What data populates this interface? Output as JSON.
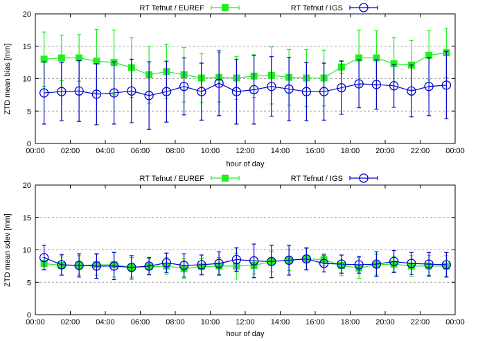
{
  "chart_data": [
    {
      "type": "line",
      "xlabel": "hour of day",
      "ylabel": "ZTD mean bias [mm]",
      "xlim": [
        0,
        24
      ],
      "ylim": [
        0,
        20
      ],
      "xticks": [
        "00:00",
        "02:00",
        "04:00",
        "06:00",
        "08:00",
        "10:00",
        "12:00",
        "14:00",
        "16:00",
        "18:00",
        "20:00",
        "22:00",
        "00:00"
      ],
      "yticks": [
        "0",
        "5",
        "10",
        "15",
        "20"
      ],
      "grid": "horizontal dashed",
      "legend": "top",
      "x": [
        0.5,
        1.5,
        2.5,
        3.5,
        4.5,
        5.5,
        6.5,
        7.5,
        8.5,
        9.5,
        10.5,
        11.5,
        12.5,
        13.5,
        14.5,
        15.5,
        16.5,
        17.5,
        18.5,
        19.5,
        20.5,
        21.5,
        22.5,
        23.5
      ],
      "series": [
        {
          "name": "RT Tefnut / EUREF",
          "color": "#22ee22",
          "marker": "filled-square",
          "values": [
            13.0,
            13.2,
            13.2,
            12.7,
            12.5,
            11.7,
            10.6,
            11.1,
            10.6,
            10.1,
            10.2,
            10.1,
            10.4,
            10.5,
            10.2,
            10.1,
            10.1,
            11.8,
            13.2,
            13.2,
            12.3,
            12.1,
            13.6,
            14.0
          ],
          "err": [
            4.2,
            3.5,
            3.6,
            4.9,
            5.0,
            4.6,
            4.4,
            4.2,
            4.2,
            3.8,
            3.8,
            3.3,
            3.3,
            4.4,
            4.3,
            4.4,
            4.3,
            1.0,
            4.3,
            4.2,
            4.0,
            3.8,
            3.8,
            3.8
          ]
        },
        {
          "name": "RT Tefnut / IGS",
          "color": "#0000cc",
          "marker": "open-circle",
          "values": [
            7.8,
            8.0,
            8.1,
            7.6,
            7.8,
            8.1,
            7.4,
            8.0,
            8.8,
            8.0,
            9.3,
            8.0,
            8.3,
            8.8,
            8.4,
            8.0,
            8.0,
            8.6,
            9.2,
            9.1,
            8.9,
            8.1,
            8.8,
            9.0
          ],
          "err": [
            4.8,
            4.5,
            4.7,
            4.7,
            4.8,
            4.9,
            5.2,
            4.7,
            4.4,
            4.4,
            5.0,
            5.0,
            5.3,
            4.6,
            4.9,
            4.5,
            4.4,
            4.1,
            3.7,
            3.8,
            3.3,
            4.0,
            4.5,
            5.2
          ]
        }
      ]
    },
    {
      "type": "line",
      "xlabel": "hour of day",
      "ylabel": "ZTD mean sdev [mm]",
      "xlim": [
        0,
        24
      ],
      "ylim": [
        0,
        20
      ],
      "xticks": [
        "00:00",
        "02:00",
        "04:00",
        "06:00",
        "08:00",
        "10:00",
        "12:00",
        "14:00",
        "16:00",
        "18:00",
        "20:00",
        "22:00",
        "00:00"
      ],
      "yticks": [
        "0",
        "5",
        "10",
        "15",
        "20"
      ],
      "grid": "horizontal dashed",
      "legend": "top",
      "x": [
        0.5,
        1.5,
        2.5,
        3.5,
        4.5,
        5.5,
        6.5,
        7.5,
        8.5,
        9.5,
        10.5,
        11.5,
        12.5,
        13.5,
        14.5,
        15.5,
        16.5,
        17.5,
        18.5,
        19.5,
        20.5,
        21.5,
        22.5,
        23.5
      ],
      "series": [
        {
          "name": "RT Tefnut / EUREF",
          "color": "#22ee22",
          "marker": "filled-square",
          "values": [
            7.9,
            7.6,
            7.6,
            7.7,
            7.7,
            7.3,
            7.4,
            7.5,
            7.1,
            7.4,
            7.5,
            7.5,
            7.6,
            8.2,
            8.4,
            8.6,
            8.5,
            7.6,
            7.2,
            7.7,
            7.8,
            7.5,
            7.5,
            7.5
          ],
          "err": [
            0.9,
            1.5,
            1.5,
            1.6,
            1.9,
            1.5,
            1.3,
            1.3,
            1.5,
            1.3,
            1.3,
            2.0,
            1.3,
            1.6,
            1.6,
            1.6,
            0.9,
            1.6,
            1.6,
            1.6,
            1.2,
            1.6,
            1.6,
            1.6
          ]
        },
        {
          "name": "RT Tefnut / IGS",
          "color": "#0000cc",
          "marker": "open-circle",
          "values": [
            8.8,
            7.7,
            7.6,
            7.5,
            7.5,
            7.3,
            7.5,
            8.0,
            7.6,
            7.7,
            7.9,
            8.5,
            8.3,
            8.2,
            8.4,
            8.6,
            7.9,
            7.8,
            7.7,
            7.8,
            8.2,
            7.9,
            7.8,
            7.7
          ],
          "err": [
            1.9,
            1.6,
            1.8,
            1.9,
            2.1,
            1.8,
            1.3,
            1.5,
            1.8,
            1.5,
            1.8,
            1.8,
            2.6,
            2.5,
            2.3,
            1.7,
            1.3,
            1.4,
            1.3,
            1.9,
            1.7,
            1.7,
            1.8,
            1.9
          ]
        }
      ]
    }
  ]
}
